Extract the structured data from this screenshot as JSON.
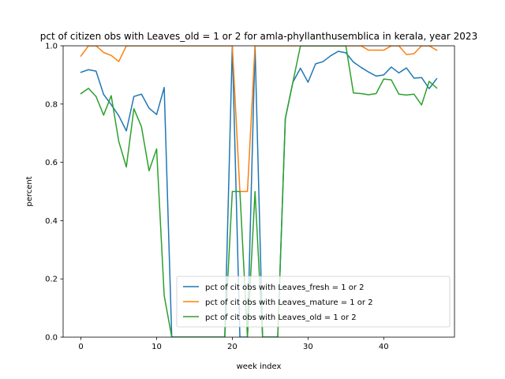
{
  "chart_data": {
    "type": "line",
    "title": "pct of citizen obs with Leaves_old = 1 or 2 for amla-phyllanthusemblica in kerala, year 2023",
    "xlabel": "week index",
    "ylabel": "percent",
    "xlim": [
      -2.35,
      49.35
    ],
    "ylim": [
      0.0,
      1.0
    ],
    "xticks": [
      0,
      10,
      20,
      30,
      40
    ],
    "yticks": [
      0.0,
      0.2,
      0.4,
      0.6,
      0.8,
      1.0
    ],
    "xtick_labels": [
      "0",
      "10",
      "20",
      "30",
      "40"
    ],
    "ytick_labels": [
      "0.0",
      "0.2",
      "0.4",
      "0.6",
      "0.8",
      "1.0"
    ],
    "grid": false,
    "legend_position": "lower-right",
    "series": [
      {
        "name": "pct of cit obs with Leaves_fresh = 1 or 2",
        "color": "#1f77b4",
        "x": [
          0,
          1,
          2,
          3,
          4,
          5,
          6,
          7,
          8,
          9,
          10,
          11,
          12,
          13,
          14,
          15,
          16,
          17,
          18,
          19,
          20,
          21,
          22,
          23,
          24,
          25,
          26,
          27,
          28,
          29,
          30,
          31,
          32,
          33,
          34,
          35,
          36,
          37,
          38,
          39,
          40,
          41,
          42,
          43,
          44,
          45,
          46,
          47
        ],
        "y": [
          0.909,
          0.918,
          0.913,
          0.833,
          0.798,
          0.76,
          0.708,
          0.826,
          0.834,
          0.786,
          0.764,
          0.857,
          0.0,
          0.0,
          0.0,
          0.0,
          0.0,
          0.0,
          0.0,
          0.0,
          1.0,
          0.0,
          0.0,
          1.0,
          0.0,
          0.0,
          0.0,
          0.75,
          0.875,
          0.923,
          0.875,
          0.938,
          0.946,
          0.966,
          0.981,
          0.976,
          0.944,
          0.926,
          0.91,
          0.896,
          0.9,
          0.927,
          0.907,
          0.924,
          0.889,
          0.891,
          0.853,
          0.887
        ]
      },
      {
        "name": "pct of cit obs with Leaves_mature = 1 or 2",
        "color": "#ff7f0e",
        "x": [
          0,
          1,
          2,
          3,
          4,
          5,
          6,
          7,
          8,
          9,
          10,
          11,
          12,
          13,
          14,
          15,
          16,
          17,
          18,
          19,
          20,
          21,
          22,
          23,
          24,
          25,
          26,
          27,
          28,
          29,
          30,
          31,
          32,
          33,
          34,
          35,
          36,
          37,
          38,
          39,
          40,
          41,
          42,
          43,
          44,
          45,
          46,
          47
        ],
        "y": [
          0.965,
          1.0,
          1.0,
          0.977,
          0.967,
          0.946,
          1.0,
          1.0,
          1.0,
          1.0,
          1.0,
          1.0,
          1.0,
          1.0,
          1.0,
          1.0,
          1.0,
          1.0,
          1.0,
          1.0,
          1.0,
          0.5,
          0.5,
          1.0,
          1.0,
          1.0,
          1.0,
          1.0,
          1.0,
          1.0,
          1.0,
          1.0,
          1.0,
          1.0,
          1.0,
          1.0,
          1.0,
          1.0,
          0.985,
          0.985,
          0.985,
          1.0,
          1.0,
          0.97,
          0.973,
          1.0,
          1.0,
          0.985
        ]
      },
      {
        "name": "pct of cit obs with Leaves_old = 1 or 2",
        "color": "#2ca02c",
        "x": [
          0,
          1,
          2,
          3,
          4,
          5,
          6,
          7,
          8,
          9,
          10,
          11,
          12,
          13,
          14,
          15,
          16,
          17,
          18,
          19,
          20,
          21,
          22,
          23,
          24,
          25,
          26,
          27,
          28,
          29,
          30,
          31,
          32,
          33,
          34,
          35,
          36,
          37,
          38,
          39,
          40,
          41,
          42,
          43,
          44,
          45,
          46,
          47
        ],
        "y": [
          0.836,
          0.854,
          0.826,
          0.762,
          0.829,
          0.672,
          0.584,
          0.784,
          0.722,
          0.571,
          0.646,
          0.143,
          0.0,
          0.0,
          0.0,
          0.0,
          0.0,
          0.0,
          0.0,
          0.0,
          0.5,
          0.5,
          0.0,
          0.5,
          0.0,
          0.0,
          0.0,
          0.75,
          0.875,
          1.0,
          1.0,
          1.0,
          1.0,
          1.0,
          1.0,
          1.0,
          0.838,
          0.836,
          0.832,
          0.836,
          0.886,
          0.883,
          0.834,
          0.831,
          0.834,
          0.797,
          0.878,
          0.855
        ]
      }
    ]
  }
}
